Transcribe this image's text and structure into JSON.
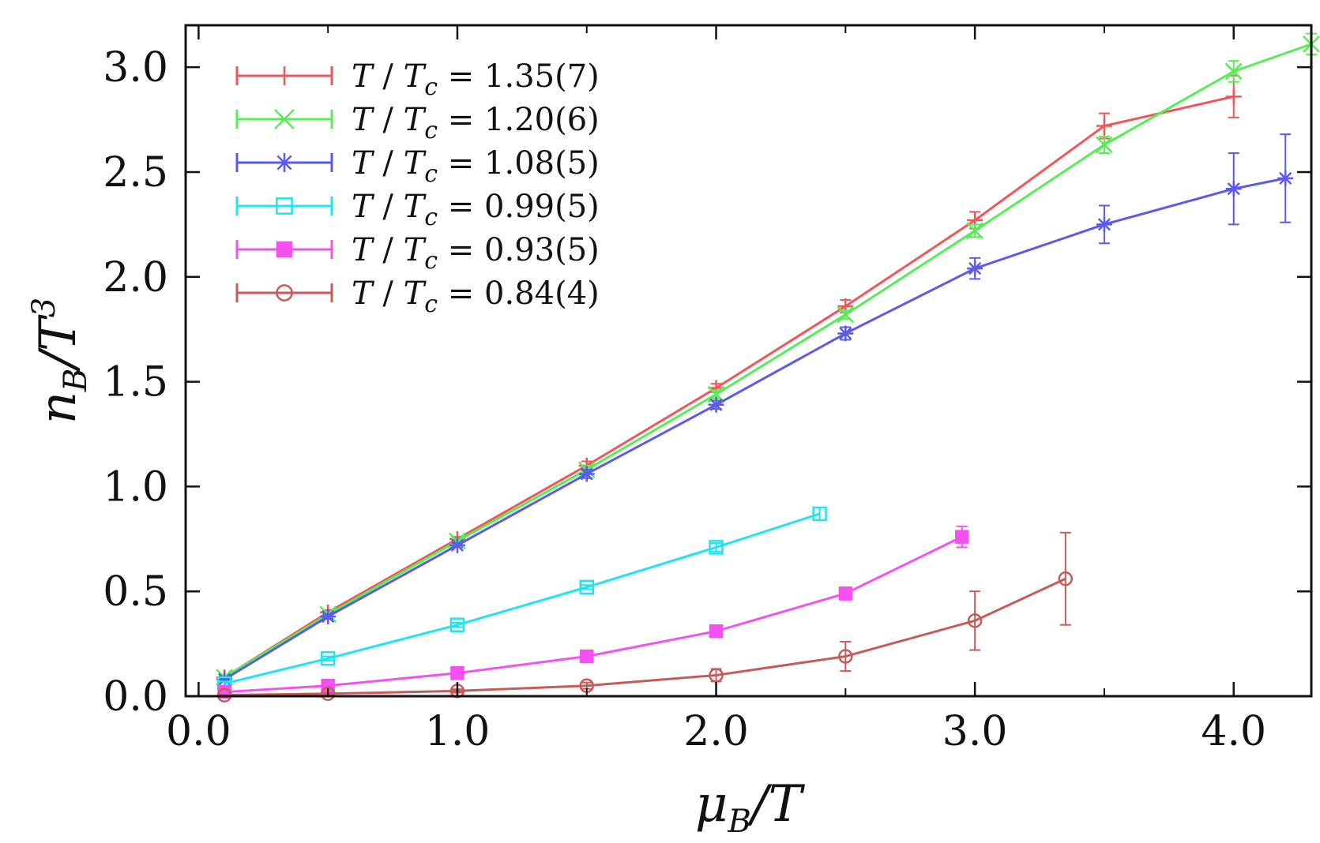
{
  "chart_data": {
    "type": "line",
    "title": "",
    "xlabel": {
      "main": "μ",
      "sub": "B",
      "rest": "/T"
    },
    "ylabel": {
      "main": "n",
      "sub": "B",
      "rest": "/T",
      "sup": "3"
    },
    "xlim": [
      -0.05,
      4.3
    ],
    "ylim": [
      0.0,
      3.2
    ],
    "xticks": [
      0.0,
      1.0,
      2.0,
      3.0,
      4.0
    ],
    "xtick_labels": [
      "0.0",
      "1.0",
      "2.0",
      "3.0",
      "4.0"
    ],
    "x_minor_ticks": [
      0.5,
      1.5,
      2.5,
      3.5
    ],
    "yticks": [
      0.0,
      0.5,
      1.0,
      1.5,
      2.0,
      2.5,
      3.0
    ],
    "ytick_labels": [
      "0.0",
      "0.5",
      "1.0",
      "1.5",
      "2.0",
      "2.5",
      "3.0"
    ],
    "grid": false,
    "legend_position": "top-left",
    "series": [
      {
        "name": "T/T_c = 1.35(7)",
        "legend_value": "1.35(7)",
        "color": "#f25656",
        "marker": "plus",
        "x": [
          0.1,
          0.5,
          1.0,
          1.5,
          2.0,
          2.5,
          3.0,
          3.5,
          4.0
        ],
        "y": [
          0.09,
          0.4,
          0.75,
          1.1,
          1.47,
          1.86,
          2.27,
          2.72,
          2.86
        ],
        "err": [
          0.01,
          0.01,
          0.01,
          0.02,
          0.02,
          0.03,
          0.04,
          0.06,
          0.1
        ]
      },
      {
        "name": "T/T_c = 1.20(6)",
        "legend_value": "1.20(6)",
        "color": "#55ee55",
        "marker": "x",
        "x": [
          0.1,
          0.5,
          1.0,
          1.5,
          2.0,
          2.5,
          3.0,
          3.5,
          4.0,
          4.3
        ],
        "y": [
          0.09,
          0.39,
          0.74,
          1.08,
          1.44,
          1.82,
          2.22,
          2.63,
          2.98,
          3.11
        ],
        "err": [
          0.01,
          0.01,
          0.01,
          0.02,
          0.02,
          0.02,
          0.03,
          0.04,
          0.05,
          0.05
        ]
      },
      {
        "name": "T/T_c = 1.08(5)",
        "legend_value": "1.08(5)",
        "color": "#5a5aee",
        "marker": "star",
        "x": [
          0.1,
          0.5,
          1.0,
          1.5,
          2.0,
          2.5,
          3.0,
          3.5,
          4.0,
          4.2
        ],
        "y": [
          0.08,
          0.38,
          0.72,
          1.06,
          1.39,
          1.73,
          2.04,
          2.25,
          2.42,
          2.47
        ],
        "err": [
          0.01,
          0.01,
          0.01,
          0.02,
          0.02,
          0.03,
          0.05,
          0.09,
          0.17,
          0.21
        ]
      },
      {
        "name": "T/T_c = 0.99(5)",
        "legend_value": "0.99(5)",
        "color": "#1ee5ee",
        "marker": "open-square",
        "x": [
          0.1,
          0.5,
          1.0,
          1.5,
          2.0,
          2.4
        ],
        "y": [
          0.06,
          0.18,
          0.34,
          0.52,
          0.71,
          0.87
        ],
        "err": [
          0.01,
          0.01,
          0.01,
          0.01,
          0.02,
          0.03
        ]
      },
      {
        "name": "T/T_c = 0.93(5)",
        "legend_value": "0.93(5)",
        "color": "#f550f0",
        "marker": "filled-square",
        "x": [
          0.1,
          0.5,
          1.0,
          1.5,
          2.0,
          2.5,
          2.95
        ],
        "y": [
          0.02,
          0.05,
          0.11,
          0.19,
          0.31,
          0.49,
          0.76
        ],
        "err": [
          0.005,
          0.005,
          0.01,
          0.01,
          0.02,
          0.03,
          0.05
        ]
      },
      {
        "name": "T/T_c = 0.84(4)",
        "legend_value": "0.84(4)",
        "color": "#c85a5a",
        "marker": "open-circle",
        "x": [
          0.1,
          0.5,
          1.0,
          1.5,
          2.0,
          2.5,
          3.0,
          3.35
        ],
        "y": [
          0.005,
          0.012,
          0.025,
          0.05,
          0.1,
          0.19,
          0.36,
          0.56
        ],
        "err": [
          0.002,
          0.004,
          0.008,
          0.015,
          0.03,
          0.07,
          0.14,
          0.22
        ]
      }
    ]
  }
}
